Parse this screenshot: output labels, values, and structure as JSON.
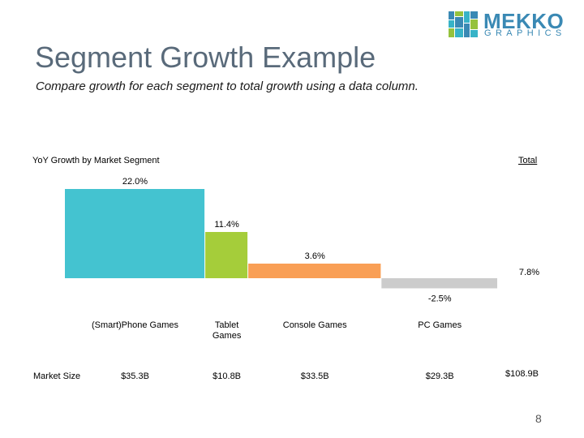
{
  "logo": {
    "word": "MEKKO",
    "sub": "GRAPHICS",
    "colors": [
      "#3a89b4",
      "#95c23d",
      "#37b3c7"
    ]
  },
  "title": "Segment Growth Example",
  "subtitle": "Compare growth for each segment to total growth using a data column.",
  "chart_data": {
    "type": "bar",
    "title": "YoY Growth by Market Segment",
    "total_header": "Total",
    "categories": [
      "(Smart)Phone Games",
      "Tablet\nGames",
      "Console Games",
      "PC Games"
    ],
    "values": [
      22.0,
      11.4,
      3.6,
      -2.5
    ],
    "value_labels": [
      "22.0%",
      "11.4%",
      "3.6%",
      "-2.5%"
    ],
    "widths": [
      35.3,
      10.8,
      33.5,
      29.3
    ],
    "colors": [
      "#44c3d0",
      "#a5cd3a",
      "#f99f55",
      "#cccccc"
    ],
    "total_value": 7.8,
    "total_label": "7.8%",
    "market_size_label": "Market Size",
    "market_sizes": [
      "$35.3B",
      "$10.8B",
      "$33.5B",
      "$29.3B"
    ],
    "market_size_total": "$108.9B",
    "legend": "none",
    "grid": false
  },
  "page_number": "8"
}
